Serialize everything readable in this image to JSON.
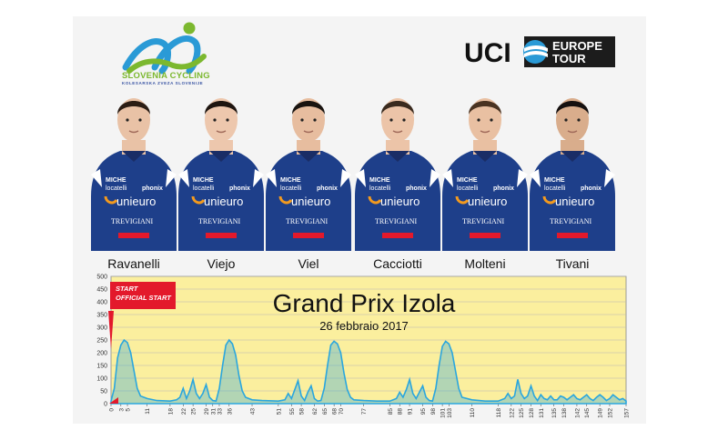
{
  "organizer": {
    "name": "SLOVENIA CYCLING",
    "subtitle": "KOLESARSKA ZVEZA SLOVENIJE"
  },
  "uci": {
    "letters": "UCI",
    "tour_line1": "EUROPE",
    "tour_line2": "TOUR"
  },
  "riders": [
    {
      "name": "Ravanelli"
    },
    {
      "name": "Viejo"
    },
    {
      "name": "Viel"
    },
    {
      "name": "Cacciotti"
    },
    {
      "name": "Molteni"
    },
    {
      "name": "Tivani"
    }
  ],
  "jersey_text": {
    "brand1": "MICHE",
    "brand2": "locatelli",
    "brand3": "phonix",
    "brand4": "unieuro",
    "brand5": "TREVIGIANI"
  },
  "colors": {
    "jersey_blue": "#1e3f8a",
    "profile_fill": "#fbef9e",
    "profile_line": "#2aa6de",
    "start_red": "#e3192b",
    "slovenia_green": "#7cb82f",
    "slovenia_blue": "#2a9ad6"
  },
  "race": {
    "title": "Grand Prix  Izola",
    "date": "26 febbraio 2017",
    "start_label": "START",
    "official_start_label": "OFFICIAL START"
  },
  "chart_data": {
    "type": "area",
    "title": "Grand Prix  Izola",
    "subtitle": "26 febbraio 2017",
    "xlabel": "",
    "ylabel": "",
    "ylim": [
      0,
      500
    ],
    "xlim": [
      0,
      157
    ],
    "y_ticks": [
      0,
      50,
      100,
      150,
      200,
      250,
      300,
      350,
      400,
      450,
      500
    ],
    "x_ticks": [
      0,
      3,
      5,
      11,
      18,
      22,
      25,
      29,
      31,
      33,
      36,
      43,
      51,
      55,
      58,
      62,
      65,
      68,
      70,
      77,
      85,
      88,
      91,
      95,
      98,
      101,
      103,
      110,
      118,
      122,
      125,
      128,
      131,
      135,
      138,
      142,
      145,
      149,
      152,
      157
    ],
    "grid": true,
    "series": [
      {
        "x": [
          0,
          1,
          2,
          3,
          4,
          5,
          6,
          7,
          8,
          9,
          11,
          14,
          18,
          20,
          21,
          22,
          23,
          24,
          25,
          26,
          27,
          28,
          29,
          30,
          31,
          32,
          33,
          34,
          35,
          36,
          37,
          38,
          39,
          40,
          41,
          43,
          46,
          51,
          53,
          54,
          55,
          56,
          57,
          58,
          59,
          60,
          61,
          62,
          63,
          64,
          65,
          66,
          67,
          68,
          69,
          70,
          71,
          72,
          73,
          74,
          77,
          81,
          85,
          87,
          88,
          89,
          90,
          91,
          92,
          93,
          94,
          95,
          96,
          97,
          98,
          99,
          100,
          101,
          102,
          103,
          104,
          105,
          106,
          107,
          110,
          114,
          118,
          120,
          121,
          122,
          123,
          124,
          125,
          126,
          127,
          128,
          129,
          130,
          131,
          132,
          133,
          134,
          135,
          136,
          137,
          138,
          139,
          140,
          141,
          142,
          143,
          144,
          145,
          146,
          147,
          148,
          149,
          150,
          151,
          152,
          153,
          154,
          155,
          156,
          157
        ],
        "values": [
          10,
          60,
          180,
          230,
          250,
          240,
          200,
          130,
          60,
          30,
          20,
          12,
          10,
          15,
          25,
          60,
          20,
          50,
          95,
          40,
          20,
          40,
          75,
          25,
          12,
          10,
          60,
          150,
          230,
          250,
          235,
          190,
          110,
          50,
          25,
          15,
          12,
          10,
          15,
          40,
          20,
          55,
          90,
          30,
          12,
          45,
          70,
          20,
          10,
          12,
          60,
          150,
          230,
          245,
          235,
          200,
          120,
          55,
          25,
          15,
          12,
          10,
          10,
          20,
          45,
          25,
          55,
          95,
          40,
          20,
          45,
          70,
          25,
          12,
          10,
          60,
          150,
          225,
          245,
          235,
          200,
          130,
          60,
          25,
          15,
          10,
          10,
          20,
          40,
          20,
          30,
          95,
          40,
          20,
          30,
          70,
          30,
          12,
          35,
          20,
          15,
          30,
          15,
          15,
          30,
          25,
          15,
          25,
          35,
          20,
          15,
          25,
          35,
          20,
          12,
          25,
          35,
          25,
          12,
          20,
          35,
          25,
          15,
          20,
          10
        ]
      }
    ]
  }
}
